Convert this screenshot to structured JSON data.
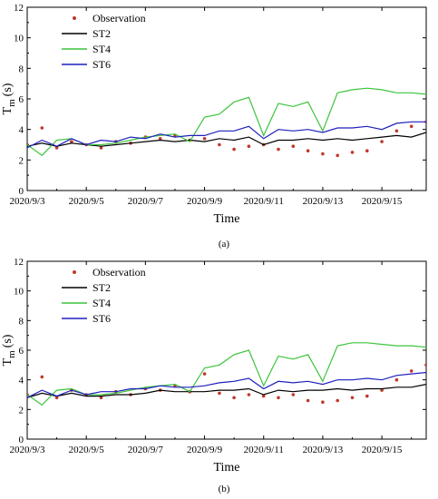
{
  "chart_data": [
    {
      "type": "line",
      "panel_label": "(a)",
      "xlabel": "Time",
      "ylabel": "T",
      "ylabel_sub": "m",
      "ylabel_unit": "(s)",
      "ylim": [
        0,
        12
      ],
      "yticks": [
        "0",
        "2",
        "4",
        "6",
        "8",
        "10",
        "12"
      ],
      "xlim": [
        "2020/9/3",
        "2020/9/16 12:00"
      ],
      "xticks": [
        "2020/9/3",
        "2020/9/5",
        "2020/9/7",
        "2020/9/9",
        "2020/9/11",
        "2020/9/13",
        "2020/9/15"
      ],
      "legend_position": "top-left",
      "grid": false,
      "series": [
        {
          "name": "Observation",
          "kind": "scatter",
          "color": "#c0392b",
          "x": [
            "2020/9/3",
            "2020/9/3 12:00",
            "2020/9/4",
            "2020/9/4 12:00",
            "2020/9/5",
            "2020/9/5 12:00",
            "2020/9/6",
            "2020/9/6 12:00",
            "2020/9/7",
            "2020/9/7 12:00",
            "2020/9/8",
            "2020/9/8 12:00",
            "2020/9/9",
            "2020/9/9 12:00",
            "2020/9/10",
            "2020/9/10 12:00",
            "2020/9/11",
            "2020/9/11 12:00",
            "2020/9/12",
            "2020/9/12 12:00",
            "2020/9/13",
            "2020/9/13 12:00",
            "2020/9/14",
            "2020/9/14 12:00",
            "2020/9/15",
            "2020/9/15 12:00",
            "2020/9/16",
            "2020/9/16 12:00"
          ],
          "values": [
            3.0,
            4.1,
            2.8,
            3.2,
            3.0,
            2.8,
            3.2,
            3.1,
            3.5,
            3.4,
            3.6,
            3.3,
            3.4,
            3.0,
            2.7,
            2.9,
            3.0,
            2.7,
            2.9,
            2.6,
            2.4,
            2.3,
            2.5,
            2.6,
            3.2,
            3.9,
            4.2,
            4.5
          ]
        },
        {
          "name": "ST2",
          "kind": "line",
          "color": "#000000",
          "x": [
            "2020/9/3",
            "2020/9/3 12:00",
            "2020/9/4",
            "2020/9/4 12:00",
            "2020/9/5",
            "2020/9/5 12:00",
            "2020/9/6",
            "2020/9/6 12:00",
            "2020/9/7",
            "2020/9/7 12:00",
            "2020/9/8",
            "2020/9/8 12:00",
            "2020/9/9",
            "2020/9/9 12:00",
            "2020/9/10",
            "2020/9/10 12:00",
            "2020/9/11",
            "2020/9/11 12:00",
            "2020/9/12",
            "2020/9/12 12:00",
            "2020/9/13",
            "2020/9/13 12:00",
            "2020/9/14",
            "2020/9/14 12:00",
            "2020/9/15",
            "2020/9/15 12:00",
            "2020/9/16",
            "2020/9/16 12:00"
          ],
          "values": [
            2.9,
            3.1,
            2.9,
            3.1,
            3.0,
            2.9,
            3.0,
            3.1,
            3.2,
            3.3,
            3.2,
            3.3,
            3.2,
            3.4,
            3.3,
            3.5,
            3.0,
            3.3,
            3.3,
            3.4,
            3.3,
            3.4,
            3.3,
            3.4,
            3.5,
            3.6,
            3.5,
            3.8
          ]
        },
        {
          "name": "ST4",
          "kind": "line",
          "color": "#3cc43c",
          "x": [
            "2020/9/3",
            "2020/9/3 12:00",
            "2020/9/4",
            "2020/9/4 12:00",
            "2020/9/5",
            "2020/9/5 12:00",
            "2020/9/6",
            "2020/9/6 12:00",
            "2020/9/7",
            "2020/9/7 12:00",
            "2020/9/8",
            "2020/9/8 12:00",
            "2020/9/9",
            "2020/9/9 12:00",
            "2020/9/10",
            "2020/9/10 12:00",
            "2020/9/11",
            "2020/9/11 12:00",
            "2020/9/12",
            "2020/9/12 12:00",
            "2020/9/13",
            "2020/9/13 12:00",
            "2020/9/14",
            "2020/9/14 12:00",
            "2020/9/15",
            "2020/9/15 12:00",
            "2020/9/16",
            "2020/9/16 12:00"
          ],
          "values": [
            3.0,
            2.3,
            3.3,
            3.4,
            3.0,
            3.0,
            3.1,
            3.3,
            3.5,
            3.6,
            3.7,
            3.2,
            4.8,
            5.0,
            5.8,
            6.1,
            3.6,
            5.7,
            5.5,
            5.8,
            3.9,
            6.4,
            6.6,
            6.7,
            6.6,
            6.4,
            6.4,
            6.3
          ]
        },
        {
          "name": "ST6",
          "kind": "line",
          "color": "#1f1fbf",
          "x": [
            "2020/9/3",
            "2020/9/3 12:00",
            "2020/9/4",
            "2020/9/4 12:00",
            "2020/9/5",
            "2020/9/5 12:00",
            "2020/9/6",
            "2020/9/6 12:00",
            "2020/9/7",
            "2020/9/7 12:00",
            "2020/9/8",
            "2020/9/8 12:00",
            "2020/9/9",
            "2020/9/9 12:00",
            "2020/9/10",
            "2020/9/10 12:00",
            "2020/9/11",
            "2020/9/11 12:00",
            "2020/9/12",
            "2020/9/12 12:00",
            "2020/9/13",
            "2020/9/13 12:00",
            "2020/9/14",
            "2020/9/14 12:00",
            "2020/9/15",
            "2020/9/15 12:00",
            "2020/9/16",
            "2020/9/16 12:00"
          ],
          "values": [
            2.8,
            3.3,
            2.9,
            3.4,
            3.0,
            3.3,
            3.2,
            3.5,
            3.4,
            3.7,
            3.5,
            3.6,
            3.6,
            3.9,
            3.9,
            4.2,
            3.4,
            4.0,
            3.9,
            4.0,
            3.8,
            4.1,
            4.1,
            4.2,
            4.0,
            4.4,
            4.5,
            4.5
          ]
        }
      ]
    },
    {
      "type": "line",
      "panel_label": "(b)",
      "xlabel": "Time",
      "ylabel": "T",
      "ylabel_sub": "m",
      "ylabel_unit": "(s)",
      "ylim": [
        0,
        12
      ],
      "yticks": [
        "0",
        "2",
        "4",
        "6",
        "8",
        "10",
        "12"
      ],
      "xlim": [
        "2020/9/3",
        "2020/9/16 12:00"
      ],
      "xticks": [
        "2020/9/3",
        "2020/9/5",
        "2020/9/7",
        "2020/9/9",
        "2020/9/11",
        "2020/9/13",
        "2020/9/15"
      ],
      "legend_position": "top-left",
      "grid": false,
      "series": [
        {
          "name": "Observation",
          "kind": "scatter",
          "color": "#c0392b",
          "x": [
            "2020/9/3",
            "2020/9/3 12:00",
            "2020/9/4",
            "2020/9/4 12:00",
            "2020/9/5",
            "2020/9/5 12:00",
            "2020/9/6",
            "2020/9/6 12:00",
            "2020/9/7",
            "2020/9/7 12:00",
            "2020/9/8",
            "2020/9/8 12:00",
            "2020/9/9",
            "2020/9/9 12:00",
            "2020/9/10",
            "2020/9/10 12:00",
            "2020/9/11",
            "2020/9/11 12:00",
            "2020/9/12",
            "2020/9/12 12:00",
            "2020/9/13",
            "2020/9/13 12:00",
            "2020/9/14",
            "2020/9/14 12:00",
            "2020/9/15",
            "2020/9/15 12:00",
            "2020/9/16",
            "2020/9/16 12:00"
          ],
          "values": [
            3.0,
            4.2,
            2.8,
            3.3,
            3.0,
            2.8,
            3.2,
            3.0,
            3.4,
            3.3,
            3.6,
            3.2,
            4.4,
            3.1,
            2.8,
            3.0,
            2.9,
            2.8,
            3.0,
            2.6,
            2.5,
            2.6,
            2.8,
            2.9,
            3.3,
            4.0,
            4.6,
            5.0
          ]
        },
        {
          "name": "ST2",
          "kind": "line",
          "color": "#000000",
          "x": [
            "2020/9/3",
            "2020/9/3 12:00",
            "2020/9/4",
            "2020/9/4 12:00",
            "2020/9/5",
            "2020/9/5 12:00",
            "2020/9/6",
            "2020/9/6 12:00",
            "2020/9/7",
            "2020/9/7 12:00",
            "2020/9/8",
            "2020/9/8 12:00",
            "2020/9/9",
            "2020/9/9 12:00",
            "2020/9/10",
            "2020/9/10 12:00",
            "2020/9/11",
            "2020/9/11 12:00",
            "2020/9/12",
            "2020/9/12 12:00",
            "2020/9/13",
            "2020/9/13 12:00",
            "2020/9/14",
            "2020/9/14 12:00",
            "2020/9/15",
            "2020/9/15 12:00",
            "2020/9/16",
            "2020/9/16 12:00"
          ],
          "values": [
            2.8,
            3.1,
            2.9,
            3.1,
            2.9,
            2.9,
            3.0,
            3.0,
            3.1,
            3.3,
            3.2,
            3.2,
            3.2,
            3.3,
            3.3,
            3.4,
            3.0,
            3.3,
            3.2,
            3.3,
            3.3,
            3.4,
            3.3,
            3.4,
            3.4,
            3.5,
            3.5,
            3.7
          ]
        },
        {
          "name": "ST4",
          "kind": "line",
          "color": "#3cc43c",
          "x": [
            "2020/9/3",
            "2020/9/3 12:00",
            "2020/9/4",
            "2020/9/4 12:00",
            "2020/9/5",
            "2020/9/5 12:00",
            "2020/9/6",
            "2020/9/6 12:00",
            "2020/9/7",
            "2020/9/7 12:00",
            "2020/9/8",
            "2020/9/8 12:00",
            "2020/9/9",
            "2020/9/9 12:00",
            "2020/9/10",
            "2020/9/10 12:00",
            "2020/9/11",
            "2020/9/11 12:00",
            "2020/9/12",
            "2020/9/12 12:00",
            "2020/9/13",
            "2020/9/13 12:00",
            "2020/9/14",
            "2020/9/14 12:00",
            "2020/9/15",
            "2020/9/15 12:00",
            "2020/9/16",
            "2020/9/16 12:00"
          ],
          "values": [
            3.0,
            2.3,
            3.3,
            3.4,
            3.0,
            3.0,
            3.1,
            3.3,
            3.5,
            3.6,
            3.7,
            3.2,
            4.8,
            5.0,
            5.7,
            6.0,
            3.6,
            5.6,
            5.4,
            5.7,
            3.9,
            6.3,
            6.5,
            6.5,
            6.4,
            6.3,
            6.3,
            6.2
          ]
        },
        {
          "name": "ST6",
          "kind": "line",
          "color": "#1f1fbf",
          "x": [
            "2020/9/3",
            "2020/9/3 12:00",
            "2020/9/4",
            "2020/9/4 12:00",
            "2020/9/5",
            "2020/9/5 12:00",
            "2020/9/6",
            "2020/9/6 12:00",
            "2020/9/7",
            "2020/9/7 12:00",
            "2020/9/8",
            "2020/9/8 12:00",
            "2020/9/9",
            "2020/9/9 12:00",
            "2020/9/10",
            "2020/9/10 12:00",
            "2020/9/11",
            "2020/9/11 12:00",
            "2020/9/12",
            "2020/9/12 12:00",
            "2020/9/13",
            "2020/9/13 12:00",
            "2020/9/14",
            "2020/9/14 12:00",
            "2020/9/15",
            "2020/9/15 12:00",
            "2020/9/16",
            "2020/9/16 12:00"
          ],
          "values": [
            2.8,
            3.3,
            2.9,
            3.3,
            3.0,
            3.2,
            3.2,
            3.4,
            3.4,
            3.6,
            3.5,
            3.5,
            3.6,
            3.8,
            3.9,
            4.1,
            3.4,
            3.9,
            3.8,
            3.9,
            3.7,
            4.0,
            4.0,
            4.1,
            4.0,
            4.3,
            4.4,
            4.5
          ]
        }
      ]
    }
  ]
}
